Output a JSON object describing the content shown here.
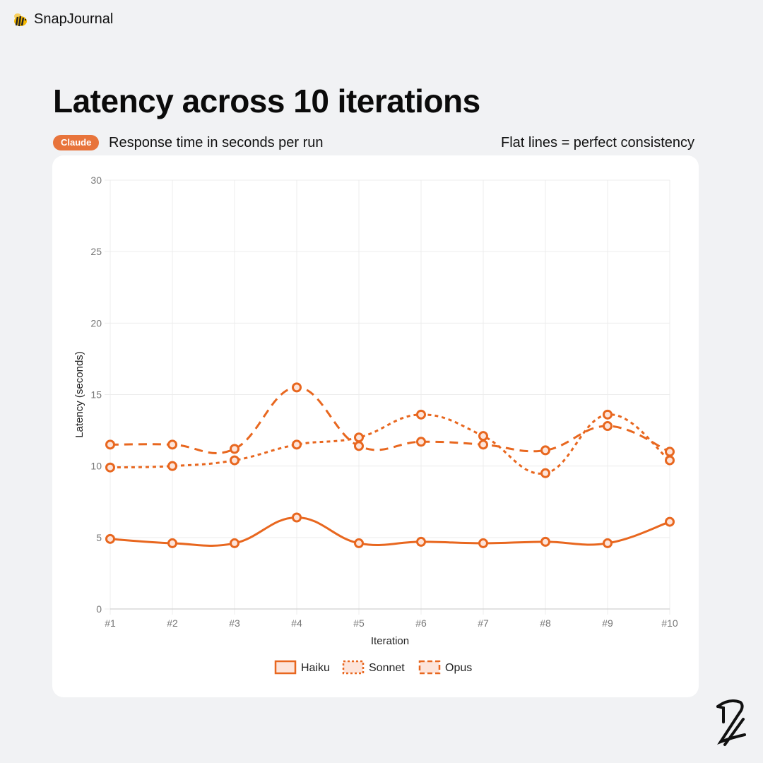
{
  "brand": {
    "name": "SnapJournal",
    "icon": "bee-icon"
  },
  "header": {
    "title": "Latency across 10 iterations",
    "badge": "Claude",
    "subtitle": "Response time in seconds per run",
    "note": "Flat lines = perfect consistency"
  },
  "colors": {
    "accent": "#e8743b",
    "line": "#e8671f",
    "fill": "#fde4da",
    "grid": "#ececec"
  },
  "chart_data": {
    "type": "line",
    "title": "Latency across 10 iterations",
    "xlabel": "Iteration",
    "ylabel": "Latency (seconds)",
    "ylim": [
      0,
      30
    ],
    "yticks": [
      "0",
      "5",
      "10",
      "15",
      "20",
      "25",
      "30"
    ],
    "ytick_values": [
      0,
      5,
      10,
      15,
      20,
      25,
      30
    ],
    "categories": [
      "#1",
      "#2",
      "#3",
      "#4",
      "#5",
      "#6",
      "#7",
      "#8",
      "#9",
      "#10"
    ],
    "grid": true,
    "legend_position": "bottom",
    "series": [
      {
        "name": "Haiku",
        "style": "solid",
        "values": [
          4.9,
          4.6,
          4.6,
          6.4,
          4.6,
          4.7,
          4.6,
          4.7,
          4.6,
          6.1
        ]
      },
      {
        "name": "Sonnet",
        "style": "dotted",
        "values": [
          9.9,
          10.0,
          10.4,
          11.5,
          12.0,
          13.6,
          12.1,
          9.5,
          13.6,
          10.4
        ]
      },
      {
        "name": "Opus",
        "style": "dashed",
        "values": [
          11.5,
          11.5,
          11.2,
          15.5,
          11.4,
          11.7,
          11.5,
          11.1,
          12.8,
          11.0
        ]
      }
    ]
  },
  "logo": {
    "text": "2"
  }
}
